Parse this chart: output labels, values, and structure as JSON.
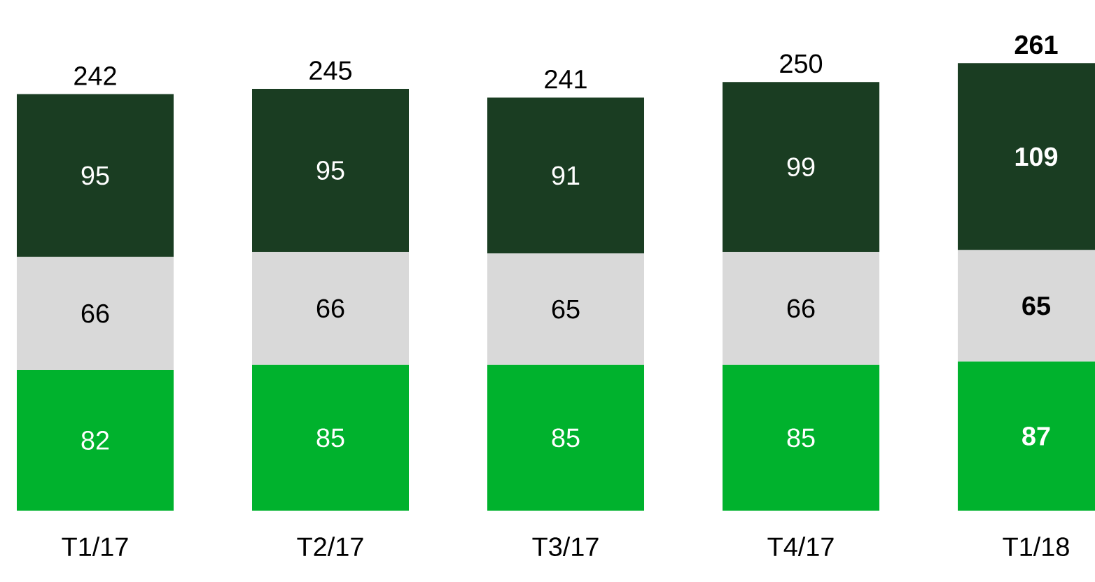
{
  "chart_data": {
    "type": "bar",
    "stacked": true,
    "categories": [
      "T1/17",
      "T2/17",
      "T3/17",
      "T4/17",
      "T1/18"
    ],
    "series": [
      {
        "color": "#00b22d",
        "values": [
          82,
          85,
          85,
          85,
          87
        ]
      },
      {
        "color": "#d9d9d9",
        "values": [
          66,
          66,
          65,
          66,
          65
        ]
      },
      {
        "color": "#1a3d22",
        "values": [
          95,
          95,
          91,
          99,
          109
        ]
      }
    ],
    "totals": [
      "242",
      "245",
      "241",
      "250",
      "261"
    ],
    "data_labels": true,
    "tick_labels": "x"
  }
}
